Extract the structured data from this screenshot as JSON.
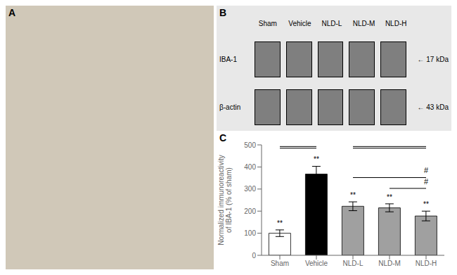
{
  "chart_data": [
    {
      "type": "image",
      "title": "A",
      "color": "#d0c8b8"
    },
    {
      "type": "blot",
      "title": "B",
      "color": "#e8e8e8",
      "categories": [
        "Sham",
        "Vehicle",
        "NLD-L",
        "NLD-M",
        "NLD-H"
      ],
      "annotations": [
        "IBA-1",
        "← 17 kDa",
        "β-actin",
        "← 43 kDa"
      ]
    },
    {
      "type": "bar",
      "title": "C",
      "categories": [
        "Sham",
        "Vehicle",
        "NLD-L",
        "NLD-M",
        "NLD-H"
      ],
      "values": [
        100,
        368,
        222,
        215,
        178
      ],
      "errors": [
        15,
        35,
        20,
        18,
        22
      ],
      "colors": [
        "#ffffff",
        "#000000",
        "#a0a0a0",
        "#a0a0a0",
        "#a0a0a0"
      ],
      "ylabel": "Normalized immunoreactivity\nof IBA-1 (% of sham)",
      "ylim": [
        0,
        500
      ],
      "yticks": [
        0,
        100,
        200,
        300,
        400,
        500
      ],
      "annotations": [
        {
          "text": "**",
          "x": "Sham"
        },
        {
          "text": "**",
          "x": "Vehicle"
        },
        {
          "text": "**",
          "x": "NLD-L"
        },
        {
          "text": "**",
          "x": "NLD-M"
        },
        {
          "text": "**",
          "x": "NLD-H"
        },
        {
          "from": "Sham",
          "to": "Vehicle",
          "line_style": "double"
        },
        {
          "from": "NLD-L",
          "to": "NLD-H",
          "line_style": "double"
        },
        {
          "text": "#",
          "from": "NLD-L",
          "to": "NLD-H"
        },
        {
          "text": "#",
          "from": "NLD-M",
          "to": "NLD-H"
        }
      ]
    }
  ]
}
